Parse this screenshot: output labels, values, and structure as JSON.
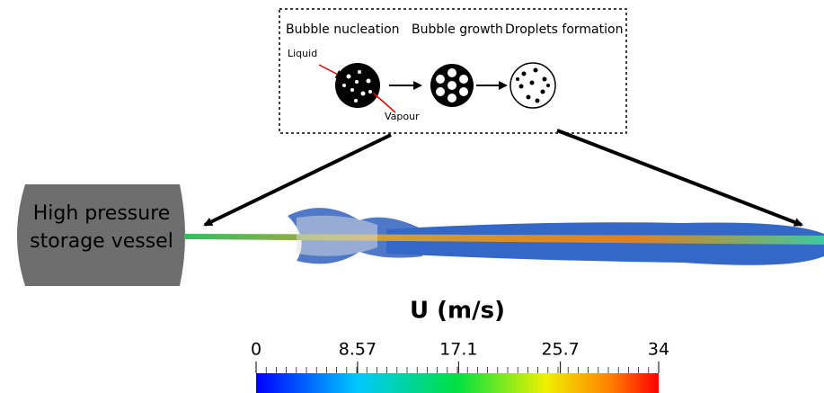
{
  "inset": {
    "stages": [
      "Bubble nucleation",
      "Bubble growth",
      "Droplets formation"
    ],
    "liquid_label": "Liquid",
    "vapour_label": "Vapour"
  },
  "vessel": {
    "label_lines": [
      "High pressure",
      "storage vessel"
    ]
  },
  "colorbar": {
    "title": "U (m/s)",
    "range": [
      0,
      34
    ],
    "ticks": [
      0,
      8.57,
      17.1,
      25.7,
      34
    ]
  }
}
